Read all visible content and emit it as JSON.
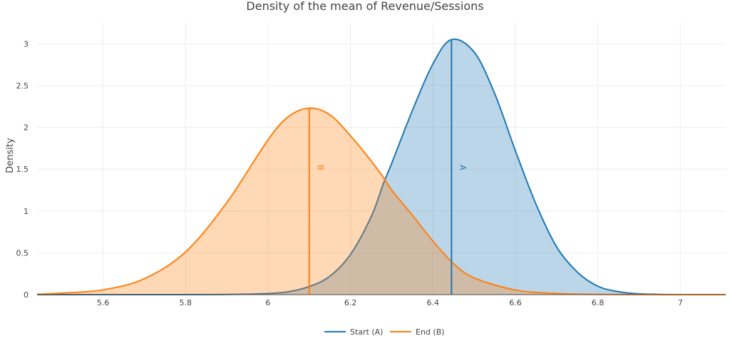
{
  "chart_data": {
    "type": "area",
    "title": "Density of the mean of Revenue/Sessions",
    "xlabel": "",
    "ylabel": "Density",
    "xlim": [
      5.44,
      7.11
    ],
    "ylim": [
      0,
      3.25
    ],
    "xticks": [
      "5.6",
      "5.8",
      "6",
      "6.2",
      "6.4",
      "6.6",
      "6.8",
      "7"
    ],
    "yticks": [
      "0",
      "0.5",
      "1",
      "1.5",
      "2",
      "2.5",
      "3"
    ],
    "grid": true,
    "legend_position": "bottom-center",
    "series": [
      {
        "name": "Start (A)",
        "color": "#1f77b4",
        "fill": "rgba(31,119,180,0.3)",
        "mean": 6.445,
        "peak_density": 3.05,
        "marker_label": "A",
        "x": [
          5.44,
          5.6,
          5.8,
          5.9,
          6.0,
          6.05,
          6.1,
          6.15,
          6.2,
          6.25,
          6.28,
          6.3,
          6.35,
          6.4,
          6.445,
          6.5,
          6.55,
          6.6,
          6.65,
          6.7,
          6.75,
          6.8,
          6.85,
          6.9,
          7.0,
          7.11
        ],
        "y": [
          0.0,
          0.0,
          0.0,
          0.002,
          0.013,
          0.035,
          0.096,
          0.22,
          0.48,
          0.93,
          1.33,
          1.57,
          2.2,
          2.76,
          3.05,
          2.9,
          2.4,
          1.72,
          1.08,
          0.57,
          0.27,
          0.1,
          0.035,
          0.01,
          0.0,
          0.0
        ]
      },
      {
        "name": "End (B)",
        "color": "#ff7f0e",
        "fill": "rgba(255,127,14,0.3)",
        "mean": 6.1,
        "peak_density": 2.23,
        "marker_label": "B",
        "x": [
          5.44,
          5.5,
          5.6,
          5.7,
          5.8,
          5.9,
          6.0,
          6.05,
          6.1,
          6.15,
          6.2,
          6.25,
          6.28,
          6.3,
          6.35,
          6.4,
          6.45,
          6.5,
          6.6,
          6.7,
          6.8,
          7.0,
          7.11
        ],
        "y": [
          0.005,
          0.018,
          0.057,
          0.19,
          0.51,
          1.1,
          1.85,
          2.13,
          2.23,
          2.15,
          1.9,
          1.6,
          1.4,
          1.25,
          0.95,
          0.64,
          0.37,
          0.2,
          0.055,
          0.014,
          0.003,
          0.0,
          0.0
        ]
      }
    ]
  }
}
